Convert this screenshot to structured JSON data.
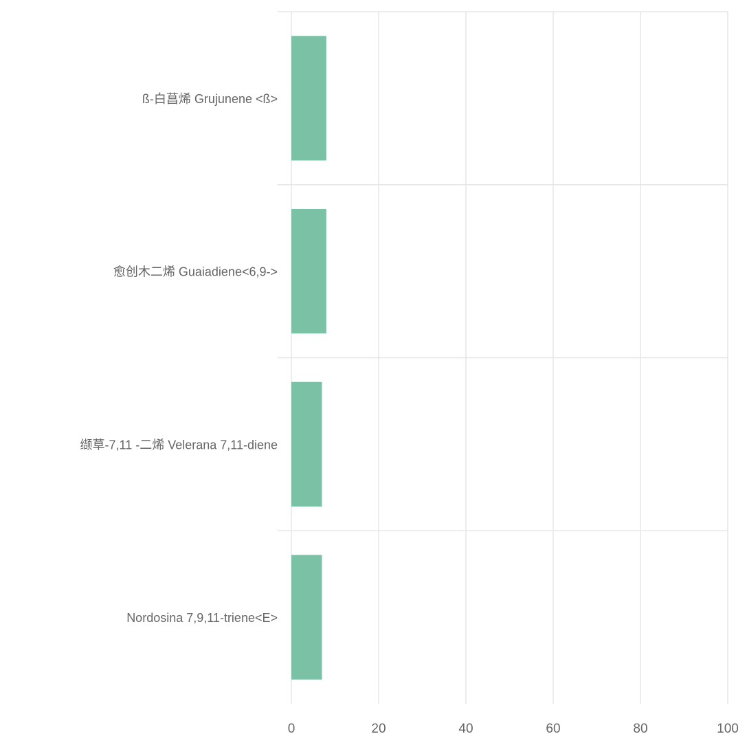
{
  "chart_data": {
    "type": "bar",
    "orientation": "horizontal",
    "categories": [
      "ß-白菖烯 Grujunene <ß>",
      "愈创木二烯 Guaiadiene<6,9->",
      "缬草-7,11 -二烯 Velerana 7,11-diene",
      "Nordosina 7,9,11-triene<E>"
    ],
    "values": [
      8,
      8,
      7,
      7
    ],
    "xlim": [
      0,
      100
    ],
    "x_ticks": [
      "0",
      "20",
      "40",
      "60",
      "80",
      "100"
    ],
    "title": "",
    "xlabel": "",
    "ylabel": "",
    "grid": true,
    "legend": "none",
    "bar_color": "#7bc1a6",
    "grid_color": "#e6e6e6",
    "label_color": "#666666"
  }
}
